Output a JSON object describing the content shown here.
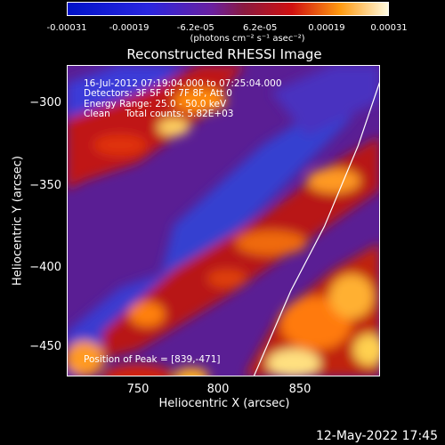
{
  "colorbar": {
    "ticks": [
      "-0.00031",
      "-0.00019",
      "-6.2e-05",
      "6.2e-05",
      "0.00019",
      "0.00031"
    ],
    "tick_values": [
      -0.00031,
      -0.00019,
      -6.2e-05,
      6.2e-05,
      0.00019,
      0.00031
    ],
    "units": "(photons cm⁻² s⁻¹ asec⁻²)",
    "range": [
      -0.00031,
      0.00031
    ]
  },
  "chart_data": {
    "type": "heatmap",
    "title": "Reconstructed RHESSI Image",
    "xlabel": "Heliocentric X (arcsec)",
    "ylabel": "Heliocentric Y (arcsec)",
    "xlim": [
      707,
      893
    ],
    "ylim": [
      -473,
      -280
    ],
    "x_ticks": [
      750,
      800,
      850
    ],
    "y_ticks": [
      -300,
      -350,
      -400,
      -450
    ],
    "peak_position": [
      839,
      -471
    ],
    "limb_curve_x": [
      818,
      840,
      860,
      880,
      893
    ],
    "limb_curve_y": [
      -473,
      -420,
      -380,
      -330,
      -290
    ]
  },
  "info": {
    "time": "16-Jul-2012 07:19:04.000 to 07:25:04.000",
    "detectors": "Detectors: 3F 5F 6F 7F 8F, Att 0",
    "energy": "Energy Range: 25.0 - 50.0 keV",
    "clean": "Clean     Total counts: 5.82E+03",
    "peak": "Position of Peak = [839,-471]"
  },
  "axis": {
    "y_ticks_text": [
      "−300",
      "−350",
      "−400",
      "−450"
    ],
    "x_ticks_text": [
      "750",
      "800",
      "850"
    ]
  },
  "footer": {
    "date": "12-May-2022 17:45"
  }
}
